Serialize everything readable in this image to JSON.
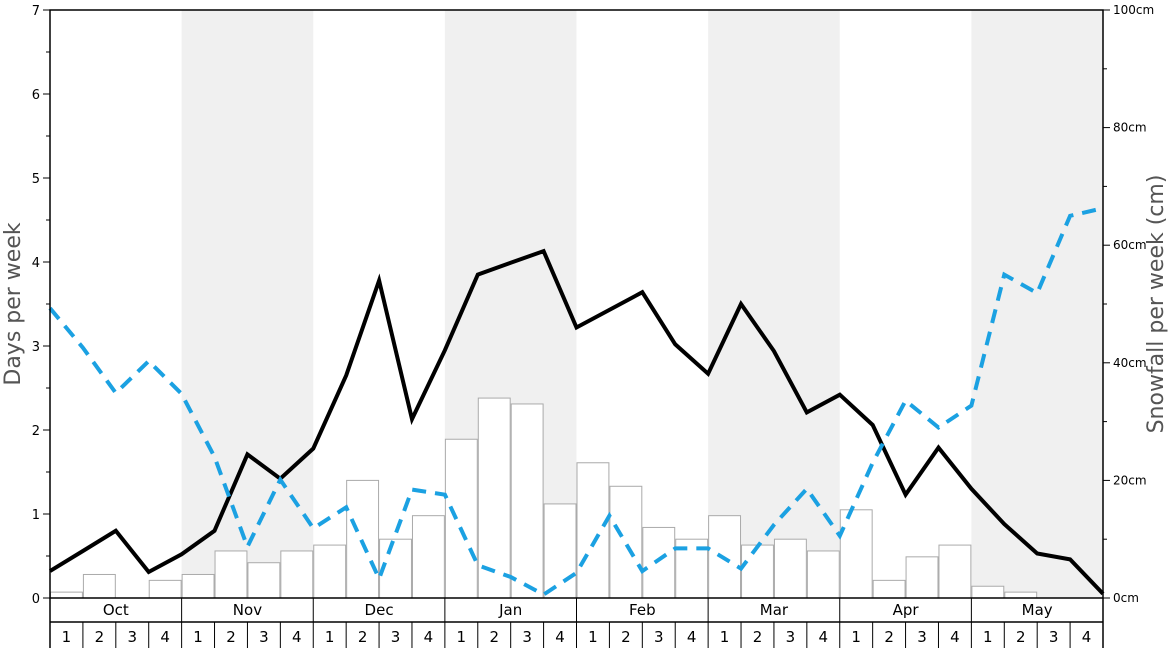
{
  "chart_data": {
    "type": "bar+line",
    "left_axis": {
      "label": "Days per week",
      "min": 0,
      "max": 7,
      "ticks": [
        "0",
        "1",
        "2",
        "3",
        "4",
        "5",
        "6",
        "7"
      ]
    },
    "right_axis": {
      "label": "Snowfall per week (cm)",
      "min": 0,
      "max": 100,
      "ticks": [
        "0cm",
        "20cm",
        "40cm",
        "60cm",
        "80cm",
        "100cm"
      ]
    },
    "months": [
      "Oct",
      "Nov",
      "Dec",
      "Jan",
      "Feb",
      "Mar",
      "Apr",
      "May"
    ],
    "week_labels": [
      "1",
      "2",
      "3",
      "4"
    ],
    "shaded_months": [
      "Nov",
      "Jan",
      "Mar",
      "May"
    ],
    "colors": {
      "solid_line": "#000000",
      "dashed_line": "#1ba1e2",
      "bar_fill": "#ffffff",
      "bar_stroke": "#aaaaaa",
      "shade": "#f0f0f0"
    },
    "series": [
      {
        "kind": "bar",
        "axis": "right",
        "unit": "cm",
        "values": [
          1,
          4,
          0,
          3,
          4,
          8,
          6,
          8,
          9,
          20,
          10,
          14,
          27,
          34,
          33,
          16,
          23,
          19,
          12,
          10,
          14,
          9,
          10,
          8,
          15,
          3,
          7,
          9,
          2,
          1,
          0,
          0
        ]
      },
      {
        "kind": "line",
        "style": "solid",
        "axis": "left",
        "values": [
          0.32,
          0.56,
          0.8,
          0.31,
          0.52,
          0.8,
          1.71,
          1.42,
          1.78,
          2.65,
          3.78,
          2.13,
          2.95,
          3.85,
          3.99,
          4.13,
          3.22,
          3.43,
          3.64,
          3.02,
          2.67,
          3.5,
          2.94,
          2.21,
          2.42,
          2.06,
          1.23,
          1.79,
          1.3,
          0.88,
          0.53,
          0.46,
          0.05
        ]
      },
      {
        "kind": "line",
        "style": "dashed",
        "axis": "left",
        "values": [
          3.45,
          2.98,
          2.44,
          2.82,
          2.43,
          1.68,
          0.61,
          1.41,
          0.83,
          1.08,
          0.23,
          1.29,
          1.23,
          0.39,
          0.25,
          0.04,
          0.3,
          0.98,
          0.32,
          0.59,
          0.59,
          0.35,
          0.87,
          1.3,
          0.74,
          1.61,
          2.35,
          2.03,
          2.29,
          3.85,
          3.63,
          4.55,
          4.64
        ]
      }
    ]
  }
}
